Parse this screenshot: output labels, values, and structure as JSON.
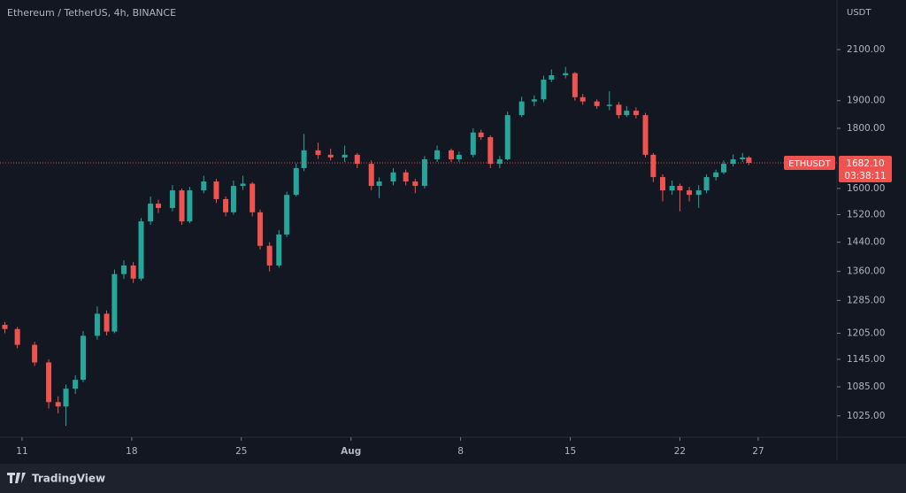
{
  "chart_data": {
    "type": "candlestick",
    "title": "Ethereum / TetherUS, 4h, BINANCE",
    "y_unit": "USDT",
    "log_scale": true,
    "up_color": "#26a69a",
    "down_color": "#ef5350",
    "xlim": [
      -1.41,
      52.03
    ],
    "xticks": [
      {
        "value": 0,
        "label": "11"
      },
      {
        "value": 7,
        "label": "18"
      },
      {
        "value": 14,
        "label": "25"
      },
      {
        "value": 21,
        "label": "Aug"
      },
      {
        "value": 28,
        "label": "8"
      },
      {
        "value": 35,
        "label": "15"
      },
      {
        "value": 42,
        "label": "22"
      },
      {
        "value": 47,
        "label": "27"
      }
    ],
    "ylim": [
      983,
      2314
    ],
    "yticks": [
      {
        "value": 1025,
        "label": "1025.00"
      },
      {
        "value": 1085,
        "label": "1085.00"
      },
      {
        "value": 1145,
        "label": "1145.00"
      },
      {
        "value": 1205,
        "label": "1205.00"
      },
      {
        "value": 1285,
        "label": "1285.00"
      },
      {
        "value": 1360,
        "label": "1360.00"
      },
      {
        "value": 1440,
        "label": "1440.00"
      },
      {
        "value": 1520,
        "label": "1520.00"
      },
      {
        "value": 1600,
        "label": "1600.00"
      },
      {
        "value": 1800,
        "label": "1800.00"
      },
      {
        "value": 1900,
        "label": "1900.00"
      },
      {
        "value": 2100,
        "label": "2100.00"
      }
    ],
    "x": [
      -1.1,
      -0.3,
      0.8,
      1.7,
      2.3,
      2.8,
      3.4,
      3.9,
      4.8,
      5.4,
      5.9,
      6.5,
      7.1,
      7.6,
      8.2,
      8.7,
      9.6,
      10.2,
      10.7,
      11.6,
      12.4,
      13.0,
      13.5,
      14.1,
      14.7,
      15.2,
      15.8,
      16.4,
      16.9,
      17.5,
      18.0,
      18.9,
      19.7,
      20.6,
      21.4,
      22.3,
      22.8,
      23.7,
      24.5,
      25.1,
      25.7,
      26.5,
      27.4,
      27.9,
      28.8,
      29.3,
      29.9,
      30.5,
      31.0,
      31.9,
      32.7,
      33.3,
      33.8,
      34.7,
      35.3,
      35.8,
      36.7,
      37.5,
      38.1,
      38.6,
      39.2,
      39.8,
      40.3,
      40.9,
      41.5,
      42.0,
      42.6,
      43.2,
      43.7,
      44.3,
      44.8,
      45.4,
      46.0,
      46.4
    ],
    "open": [
      1225,
      1215,
      1178,
      1138,
      1053,
      1044,
      1081,
      1100,
      1199,
      1252,
      1209,
      1353,
      1376,
      1341,
      1500,
      1553,
      1540,
      1594,
      1500,
      1594,
      1622,
      1567,
      1527,
      1608,
      1615,
      1527,
      1430,
      1376,
      1462,
      1580,
      1665,
      1724,
      1709,
      1700,
      1709,
      1679,
      1608,
      1622,
      1651,
      1622,
      1608,
      1694,
      1724,
      1694,
      1709,
      1785,
      1769,
      1679,
      1694,
      1847,
      1897,
      1905,
      1980,
      1997,
      2005,
      1913,
      1897,
      1880,
      1885,
      1847,
      1863,
      1847,
      1709,
      1636,
      1594,
      1608,
      1594,
      1580,
      1594,
      1636,
      1651,
      1679,
      1694,
      1700
    ],
    "high": [
      1232,
      1220,
      1185,
      1145,
      1065,
      1090,
      1110,
      1210,
      1270,
      1260,
      1365,
      1390,
      1385,
      1510,
      1575,
      1565,
      1610,
      1600,
      1605,
      1640,
      1630,
      1575,
      1625,
      1640,
      1620,
      1535,
      1440,
      1475,
      1590,
      1680,
      1780,
      1750,
      1730,
      1740,
      1715,
      1690,
      1635,
      1665,
      1660,
      1630,
      1705,
      1740,
      1730,
      1720,
      1800,
      1795,
      1775,
      1705,
      1860,
      1915,
      1920,
      1995,
      2020,
      2030,
      2010,
      1925,
      1905,
      1935,
      1895,
      1880,
      1875,
      1855,
      1715,
      1645,
      1625,
      1615,
      1605,
      1610,
      1645,
      1660,
      1690,
      1710,
      1715,
      1705
    ],
    "low": [
      1205,
      1170,
      1130,
      1040,
      1030,
      1005,
      1070,
      1095,
      1190,
      1200,
      1205,
      1340,
      1330,
      1335,
      1490,
      1525,
      1530,
      1490,
      1495,
      1585,
      1555,
      1515,
      1520,
      1595,
      1515,
      1420,
      1360,
      1370,
      1455,
      1575,
      1655,
      1695,
      1690,
      1685,
      1665,
      1595,
      1570,
      1610,
      1610,
      1585,
      1600,
      1685,
      1685,
      1685,
      1700,
      1760,
      1665,
      1665,
      1690,
      1840,
      1880,
      1895,
      1970,
      1985,
      1900,
      1885,
      1870,
      1865,
      1835,
      1840,
      1835,
      1700,
      1620,
      1560,
      1580,
      1530,
      1560,
      1540,
      1585,
      1625,
      1645,
      1670,
      1685,
      1675
    ],
    "close": [
      1215,
      1178,
      1138,
      1053,
      1044,
      1081,
      1100,
      1199,
      1252,
      1209,
      1353,
      1376,
      1341,
      1500,
      1553,
      1540,
      1594,
      1500,
      1594,
      1622,
      1567,
      1527,
      1608,
      1615,
      1527,
      1430,
      1376,
      1462,
      1580,
      1665,
      1724,
      1709,
      1700,
      1709,
      1679,
      1608,
      1622,
      1651,
      1622,
      1608,
      1694,
      1724,
      1694,
      1709,
      1785,
      1769,
      1679,
      1694,
      1847,
      1897,
      1905,
      1980,
      1997,
      2005,
      1913,
      1897,
      1880,
      1885,
      1847,
      1863,
      1847,
      1709,
      1636,
      1594,
      1608,
      1594,
      1580,
      1594,
      1636,
      1651,
      1679,
      1694,
      1700,
      1682.1
    ],
    "price_line": {
      "value": 1682.1,
      "label": "1682.10",
      "symbol": "ETHUSDT",
      "countdown": "03:38:11"
    },
    "brand": "TradingView"
  }
}
